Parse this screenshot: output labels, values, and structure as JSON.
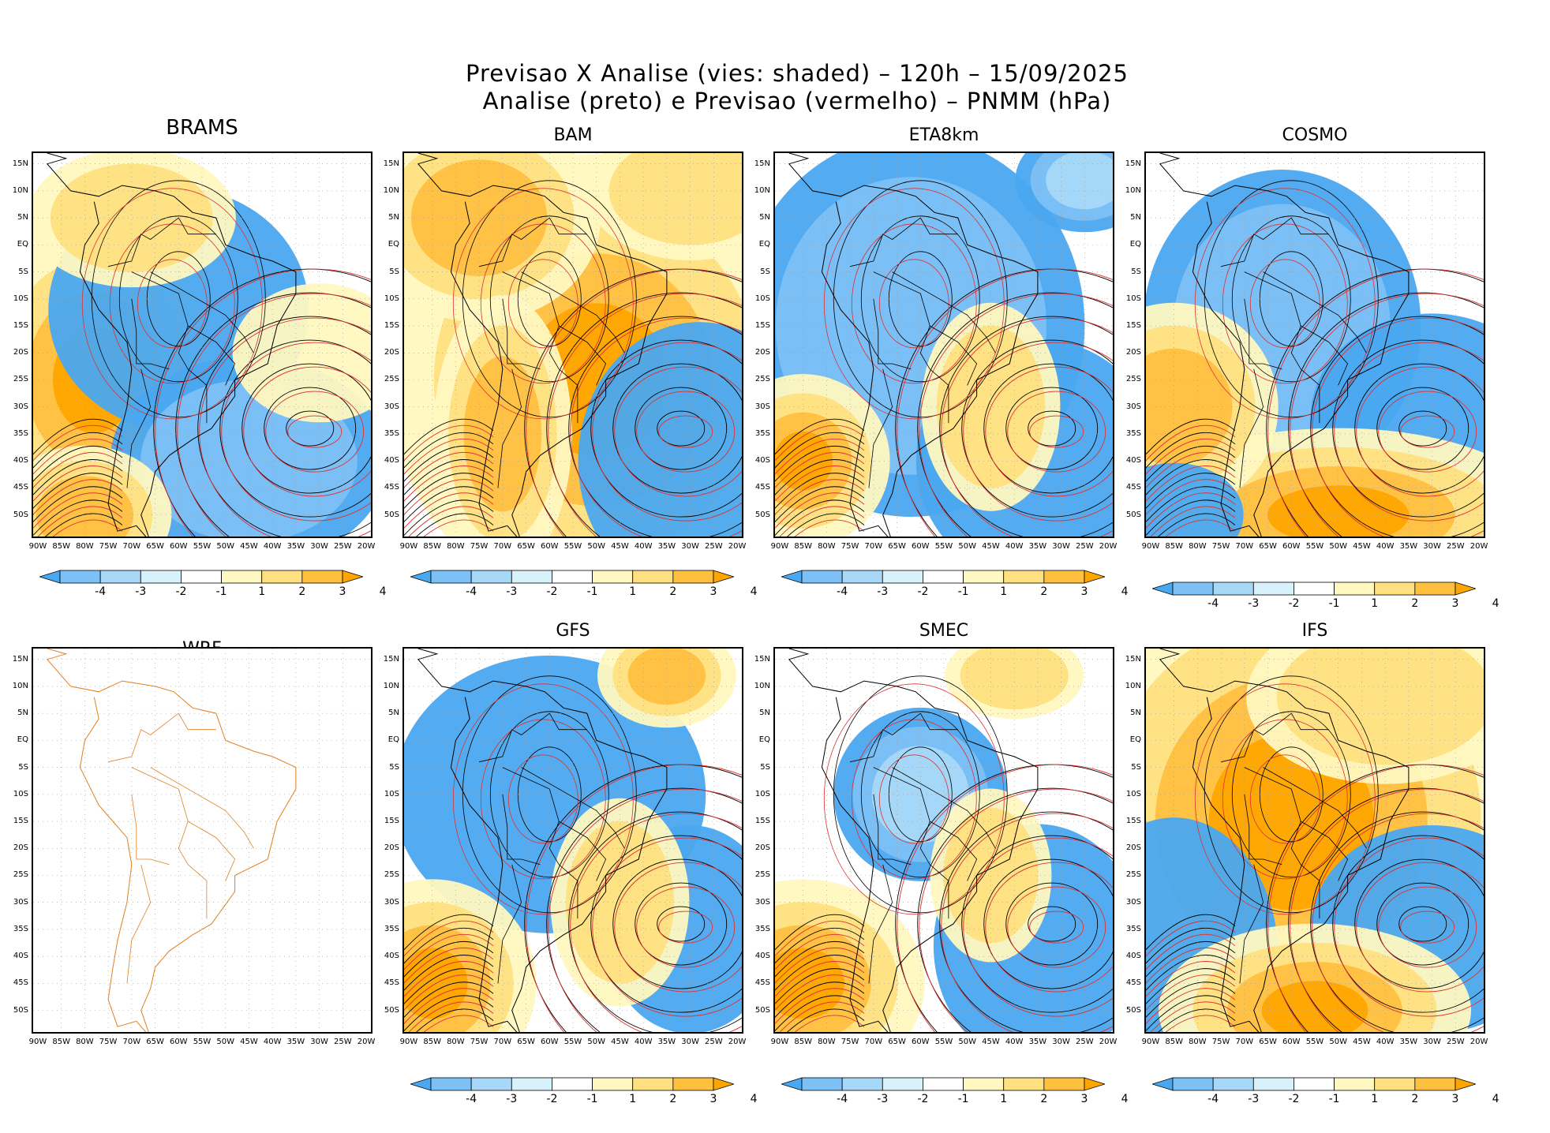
{
  "title": {
    "line1": "Previsao X Analise (vies: shaded) – 120h – 15/09/2025",
    "line2": "Analise (preto) e Previsao (vermelho) – PNMM (hPa)"
  },
  "axes": {
    "lat_labels": [
      "15N",
      "10N",
      "5N",
      "EQ",
      "5S",
      "10S",
      "15S",
      "20S",
      "25S",
      "30S",
      "35S",
      "40S",
      "45S",
      "50S"
    ],
    "lon_labels": [
      "90W",
      "85W",
      "80W",
      "75W",
      "70W",
      "65W",
      "60W",
      "55W",
      "50W",
      "45W",
      "40W",
      "35W",
      "30W",
      "25W",
      "20W"
    ]
  },
  "colorbar": {
    "labels": [
      "-4",
      "-3",
      "-2",
      "-1",
      "1",
      "2",
      "3",
      "4"
    ],
    "colors": [
      "#4aa8f0",
      "#7cc0f5",
      "#a8d8f8",
      "#d8f2fc",
      "#ffffff",
      "#fff8c0",
      "#ffe080",
      "#ffc040",
      "#ffa500"
    ]
  },
  "colors": {
    "analysis_contour": "#000000",
    "forecast_contour": "#e03030",
    "coastline": "#e08020",
    "gridline": "#999999"
  },
  "panels": [
    {
      "id": "brams",
      "title": "BRAMS",
      "bias": "mixed",
      "has_data": true
    },
    {
      "id": "bam",
      "title": "BAM",
      "bias": "warm",
      "has_data": true
    },
    {
      "id": "eta8km",
      "title": "ETA8km",
      "bias": "cool",
      "has_data": true
    },
    {
      "id": "cosmo",
      "title": "COSMO",
      "bias": "mixed",
      "has_data": true
    },
    {
      "id": "wrf",
      "title": "WRF",
      "bias": "none",
      "has_data": false
    },
    {
      "id": "gfs",
      "title": "GFS",
      "bias": "mixed",
      "has_data": true
    },
    {
      "id": "smec",
      "title": "SMEC",
      "bias": "mixed",
      "has_data": true
    },
    {
      "id": "ifs",
      "title": "IFS",
      "bias": "warm",
      "has_data": true
    }
  ]
}
